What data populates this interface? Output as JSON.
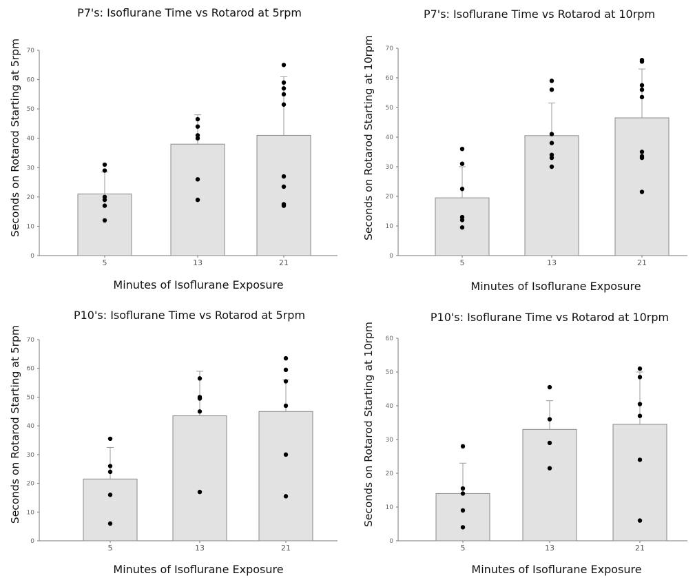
{
  "chart_data": [
    {
      "type": "bar",
      "title": "P7's: Isoflurane Time vs Rotarod at 5rpm",
      "xlabel": "Minutes of Isoflurane Exposure",
      "ylabel": "Seconds on Rotarod Starting at 5rpm",
      "categories": [
        "5",
        "13",
        "21"
      ],
      "values": [
        21,
        38,
        41
      ],
      "error_upper": [
        28.5,
        48,
        61
      ],
      "points": [
        [
          31,
          29,
          20,
          19,
          17,
          12
        ],
        [
          46.5,
          44,
          41,
          40,
          26,
          19
        ],
        [
          65,
          59,
          57,
          55,
          51.5,
          27,
          23.5,
          17.5,
          17
        ]
      ],
      "ylim": [
        0,
        70
      ],
      "yticks": [
        0,
        10,
        20,
        30,
        40,
        50,
        60,
        70
      ],
      "grid": false
    },
    {
      "type": "bar",
      "title": "P7's: Isoflurane Time vs Rotarod at 10rpm",
      "xlabel": "Minutes of Isoflurane Exposure",
      "ylabel": "Seconds on Rotarod Starting at 10rpm",
      "categories": [
        "5",
        "13",
        "21"
      ],
      "values": [
        19.5,
        40.5,
        46.5
      ],
      "error_upper": [
        30,
        51.5,
        63
      ],
      "points": [
        [
          36,
          31,
          22.5,
          13,
          12,
          9.5
        ],
        [
          59,
          56,
          41,
          38,
          34,
          33,
          30
        ],
        [
          66,
          65.5,
          57.5,
          56,
          53.5,
          35,
          33.5,
          33,
          21.5
        ]
      ],
      "ylim": [
        0,
        70
      ],
      "yticks": [
        0,
        10,
        20,
        30,
        40,
        50,
        60,
        70
      ],
      "grid": false
    },
    {
      "type": "bar",
      "title": "P10's: Isoflurane Time vs Rotarod at 5rpm",
      "xlabel": "Minutes of Isoflurane Exposure",
      "ylabel": "Seconds on Rotarod Starting at 5rpm",
      "categories": [
        "5",
        "13",
        "21"
      ],
      "values": [
        21.5,
        43.5,
        45
      ],
      "error_upper": [
        32.5,
        59,
        56
      ],
      "points": [
        [
          35.5,
          26,
          24,
          16,
          6
        ],
        [
          56.5,
          50,
          49.5,
          45,
          17
        ],
        [
          63.5,
          59.5,
          55.5,
          47,
          30,
          15.5
        ]
      ],
      "ylim": [
        0,
        70
      ],
      "yticks": [
        0,
        10,
        20,
        30,
        40,
        50,
        60,
        70
      ],
      "grid": false
    },
    {
      "type": "bar",
      "title": "P10's: Isoflurane Time vs Rotarod at 10rpm",
      "xlabel": "Minutes of Isoflurane Exposure",
      "ylabel": "Seconds on Rotarod Starting at 10rpm",
      "categories": [
        "5",
        "13",
        "21"
      ],
      "values": [
        14,
        33,
        34.5
      ],
      "error_upper": [
        23,
        41.5,
        50
      ],
      "points": [
        [
          28,
          15.5,
          14,
          9,
          4
        ],
        [
          45.5,
          36,
          29,
          21.5
        ],
        [
          51,
          48.5,
          40.5,
          37,
          24,
          6
        ]
      ],
      "ylim": [
        0,
        60
      ],
      "yticks": [
        0,
        10,
        20,
        30,
        40,
        50,
        60
      ],
      "grid": false
    }
  ]
}
